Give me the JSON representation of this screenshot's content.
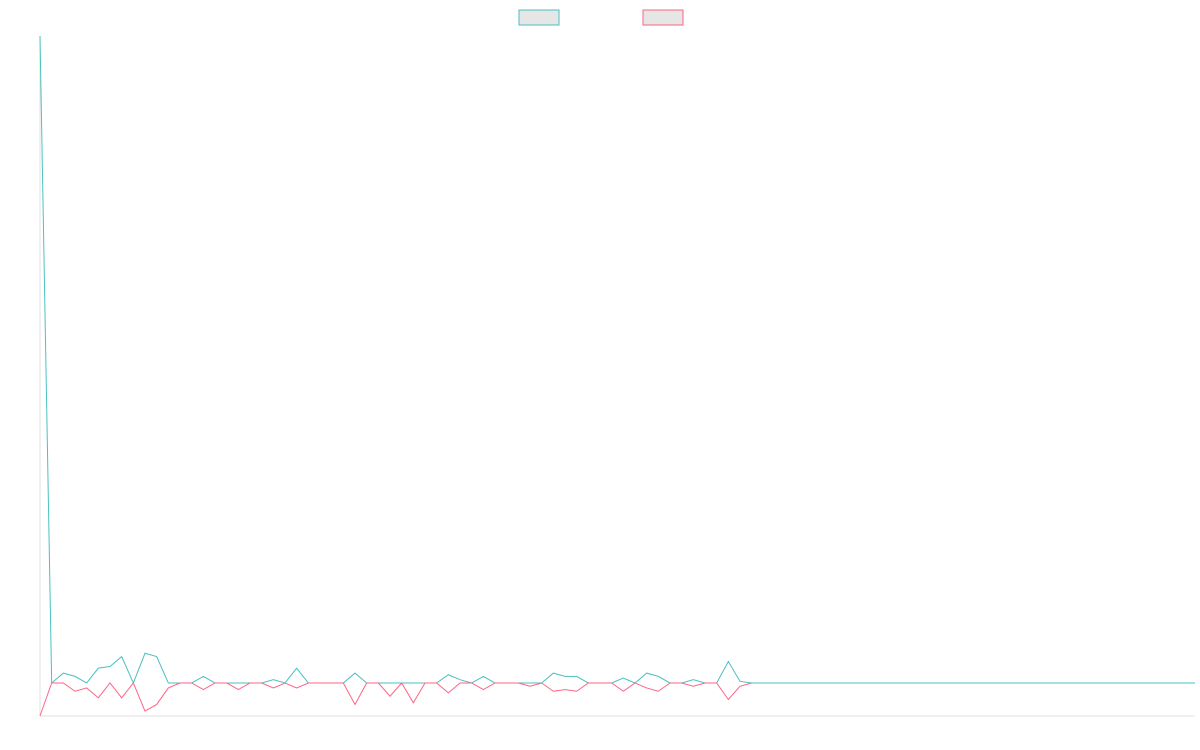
{
  "chart_data": {
    "type": "line",
    "legend": "top",
    "ylim": [
      -1,
      19.6
    ],
    "series": [
      {
        "color": "#4bc0c0",
        "values": [
          19.6,
          0,
          0.3,
          0.2,
          0,
          0.45,
          0.5,
          0.8,
          0,
          0.9,
          0.8,
          0,
          0,
          0,
          0.2,
          0,
          0,
          0,
          0,
          0,
          0.1,
          0,
          0.45,
          0,
          0,
          0,
          0,
          0.3,
          0,
          0,
          0,
          0,
          0,
          0,
          0,
          0.25,
          0.1,
          0,
          0.2,
          0,
          0,
          0,
          0,
          0,
          0.3,
          0.2,
          0.2,
          0,
          0,
          0,
          0.15,
          0,
          0.3,
          0.2,
          0,
          0,
          0.1,
          0,
          0,
          0.65,
          0.05,
          0,
          0,
          0,
          0,
          0,
          0,
          0,
          0,
          0,
          0,
          0,
          0,
          0,
          0,
          0,
          0,
          0,
          0,
          0,
          0,
          0,
          0,
          0,
          0,
          0,
          0,
          0,
          0,
          0,
          0,
          0,
          0,
          0,
          0,
          0,
          0,
          0,
          0,
          0
        ]
      },
      {
        "color": "#ff6384",
        "values": [
          -1,
          0,
          0,
          -0.25,
          -0.15,
          -0.45,
          0,
          -0.45,
          0,
          -0.85,
          -0.65,
          -0.15,
          0,
          0,
          -0.2,
          0,
          0,
          -0.2,
          0,
          0,
          -0.15,
          0,
          -0.15,
          0,
          0,
          0,
          0,
          -0.65,
          0,
          0,
          -0.4,
          0,
          -0.6,
          0,
          0,
          -0.3,
          0,
          0,
          -0.2,
          0,
          0,
          0,
          -0.1,
          0,
          -0.25,
          -0.2,
          -0.25,
          0,
          0,
          0,
          -0.25,
          0,
          -0.15,
          -0.25,
          0,
          0,
          -0.1,
          0,
          0,
          -0.5,
          -0.1,
          0,
          null,
          null,
          null,
          null,
          null,
          null,
          null,
          null,
          null,
          null,
          null,
          null,
          null,
          null,
          null,
          null,
          null,
          null,
          null,
          null,
          null,
          null,
          null,
          null,
          null,
          null,
          null,
          null,
          null,
          null,
          null,
          null,
          null,
          null,
          null,
          null,
          null,
          null
        ]
      }
    ]
  }
}
